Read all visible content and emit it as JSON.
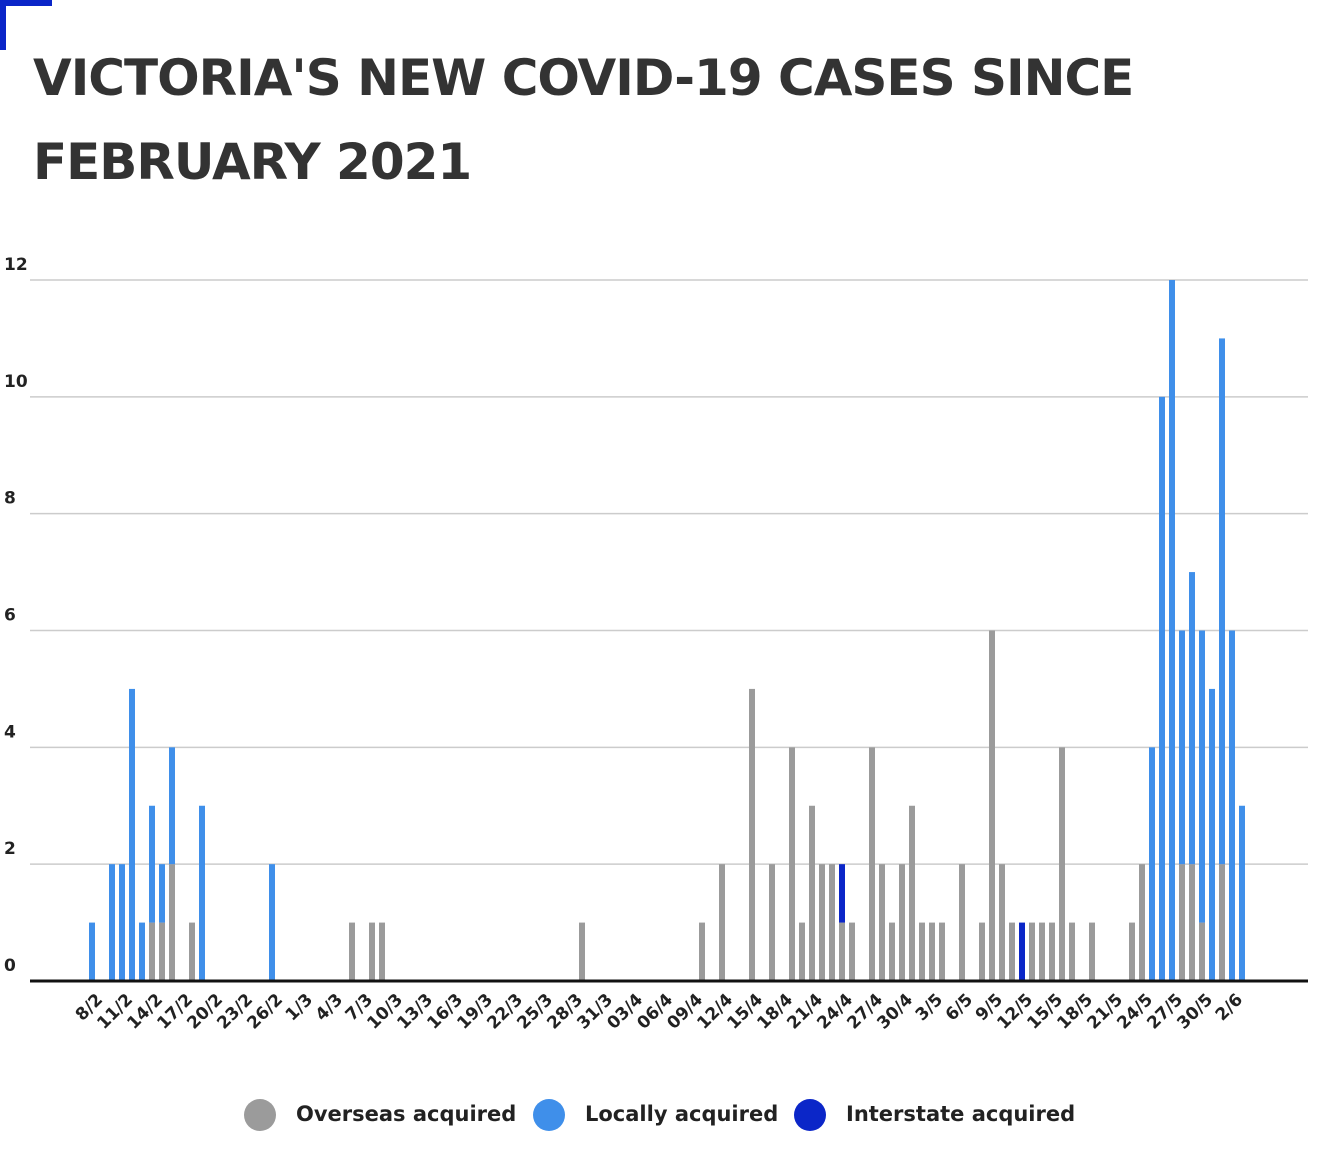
{
  "chart_data": {
    "type": "stacked_bar",
    "title": "VICTORIA'S NEW COVID-19 CASES SINCE FEBRUARY 2021",
    "categories": [
      "8/2",
      null,
      null,
      "11/2",
      null,
      null,
      "14/2",
      null,
      null,
      "17/2",
      null,
      null,
      "20/2",
      null,
      null,
      "23/2",
      null,
      null,
      "26/2",
      null,
      null,
      "1/3",
      null,
      null,
      "4/3",
      null,
      null,
      "7/3",
      null,
      null,
      "10/3",
      null,
      null,
      "13/3",
      null,
      null,
      "16/3",
      null,
      null,
      "19/3",
      null,
      null,
      "22/3",
      null,
      null,
      "25/3",
      null,
      null,
      "28/3",
      null,
      null,
      "31/3",
      null,
      null,
      "03/4",
      null,
      null,
      "06/4",
      null,
      null,
      "09/4",
      null,
      null,
      "12/4",
      null,
      null,
      "15/4",
      null,
      null,
      "18/4",
      null,
      null,
      "21/4",
      null,
      null,
      "24/4",
      null,
      null,
      "27/4",
      null,
      null,
      "30/4",
      null,
      null,
      "3/5",
      null,
      null,
      "6/5",
      null,
      null,
      "9/5",
      null,
      null,
      "12/5",
      null,
      null,
      "15/5",
      null,
      null,
      "18/5",
      null,
      null,
      "21/5",
      null,
      null,
      "24/5",
      null,
      null,
      "27/5",
      null,
      null,
      "30/5",
      null,
      null,
      "2/6",
      null
    ],
    "series": [
      {
        "name": "Overseas acquired",
        "color": "#9b9b9b",
        "values": [
          0,
          0,
          0,
          0,
          0,
          0,
          1,
          1,
          2,
          0,
          1,
          0,
          0,
          0,
          0,
          0,
          0,
          0,
          0,
          0,
          0,
          0,
          0,
          0,
          0,
          0,
          1,
          0,
          1,
          1,
          0,
          0,
          0,
          0,
          0,
          0,
          0,
          0,
          0,
          0,
          0,
          0,
          0,
          0,
          0,
          0,
          0,
          0,
          0,
          1,
          0,
          0,
          0,
          0,
          0,
          0,
          0,
          0,
          0,
          0,
          0,
          1,
          0,
          2,
          0,
          0,
          5,
          0,
          2,
          0,
          4,
          1,
          3,
          2,
          2,
          1,
          1,
          0,
          4,
          2,
          1,
          2,
          3,
          1,
          1,
          1,
          0,
          2,
          0,
          1,
          6,
          2,
          1,
          0,
          1,
          1,
          1,
          4,
          1,
          0,
          1,
          0,
          0,
          0,
          1,
          2,
          0,
          0,
          0,
          2,
          2,
          1,
          0,
          2,
          0,
          0
        ]
      },
      {
        "name": "Locally acquired",
        "color": "#3f8fea",
        "values": [
          1,
          0,
          2,
          2,
          5,
          1,
          2,
          1,
          2,
          0,
          0,
          3,
          0,
          0,
          0,
          0,
          0,
          0,
          2,
          0,
          0,
          0,
          0,
          0,
          0,
          0,
          0,
          0,
          0,
          0,
          0,
          0,
          0,
          0,
          0,
          0,
          0,
          0,
          0,
          0,
          0,
          0,
          0,
          0,
          0,
          0,
          0,
          0,
          0,
          0,
          0,
          0,
          0,
          0,
          0,
          0,
          0,
          0,
          0,
          0,
          0,
          0,
          0,
          0,
          0,
          0,
          0,
          0,
          0,
          0,
          0,
          0,
          0,
          0,
          0,
          0,
          0,
          0,
          0,
          0,
          0,
          0,
          0,
          0,
          0,
          0,
          0,
          0,
          0,
          0,
          0,
          0,
          0,
          0,
          0,
          0,
          0,
          0,
          0,
          0,
          0,
          0,
          0,
          0,
          0,
          0,
          4,
          10,
          12,
          4,
          5,
          5,
          5,
          9,
          6,
          3
        ]
      },
      {
        "name": "Interstate acquired",
        "color": "#0b26c8",
        "values": [
          0,
          0,
          0,
          0,
          0,
          0,
          0,
          0,
          0,
          0,
          0,
          0,
          0,
          0,
          0,
          0,
          0,
          0,
          0,
          0,
          0,
          0,
          0,
          0,
          0,
          0,
          0,
          0,
          0,
          0,
          0,
          0,
          0,
          0,
          0,
          0,
          0,
          0,
          0,
          0,
          0,
          0,
          0,
          0,
          0,
          0,
          0,
          0,
          0,
          0,
          0,
          0,
          0,
          0,
          0,
          0,
          0,
          0,
          0,
          0,
          0,
          0,
          0,
          0,
          0,
          0,
          0,
          0,
          0,
          0,
          0,
          0,
          0,
          0,
          0,
          1,
          0,
          0,
          0,
          0,
          0,
          0,
          0,
          0,
          0,
          0,
          0,
          0,
          0,
          0,
          0,
          0,
          0,
          1,
          0,
          0,
          0,
          0,
          0,
          0,
          0,
          0,
          0,
          0,
          0,
          0,
          0,
          0,
          0,
          0,
          0,
          0,
          0,
          0,
          0,
          0
        ]
      }
    ],
    "ylim": [
      0,
      12
    ],
    "yticks": [
      0,
      2,
      4,
      6,
      8,
      10,
      12
    ],
    "grid": true,
    "legend": "bottom"
  }
}
